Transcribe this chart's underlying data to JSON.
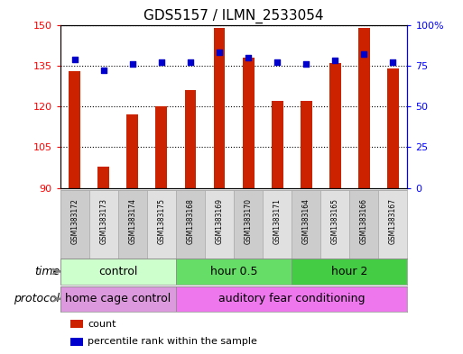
{
  "title": "GDS5157 / ILMN_2533054",
  "samples": [
    "GSM1383172",
    "GSM1383173",
    "GSM1383174",
    "GSM1383175",
    "GSM1383168",
    "GSM1383169",
    "GSM1383170",
    "GSM1383171",
    "GSM1383164",
    "GSM1383165",
    "GSM1383166",
    "GSM1383167"
  ],
  "bar_values": [
    133,
    98,
    117,
    120,
    126,
    149,
    138,
    122,
    122,
    136,
    149,
    134
  ],
  "percentile_values": [
    79,
    72,
    76,
    77,
    77,
    83,
    80,
    77,
    76,
    78,
    82,
    77
  ],
  "ylim_left": [
    90,
    150
  ],
  "ylim_right": [
    0,
    100
  ],
  "yticks_left": [
    90,
    105,
    120,
    135,
    150
  ],
  "yticks_right": [
    0,
    25,
    50,
    75,
    100
  ],
  "bar_color": "#cc2200",
  "dot_color": "#0000cc",
  "time_groups": [
    {
      "label": "control",
      "start": 0,
      "end": 4,
      "color": "#ccffcc"
    },
    {
      "label": "hour 0.5",
      "start": 4,
      "end": 8,
      "color": "#66dd66"
    },
    {
      "label": "hour 2",
      "start": 8,
      "end": 12,
      "color": "#44cc44"
    }
  ],
  "protocol_groups": [
    {
      "label": "home cage control",
      "start": 0,
      "end": 4,
      "color": "#dd99dd"
    },
    {
      "label": "auditory fear conditioning",
      "start": 4,
      "end": 12,
      "color": "#ee77ee"
    }
  ],
  "legend_items": [
    {
      "color": "#cc2200",
      "label": "count"
    },
    {
      "color": "#0000cc",
      "label": "percentile rank within the sample"
    }
  ],
  "title_fontsize": 11,
  "tick_fontsize": 8,
  "bar_width": 0.4
}
